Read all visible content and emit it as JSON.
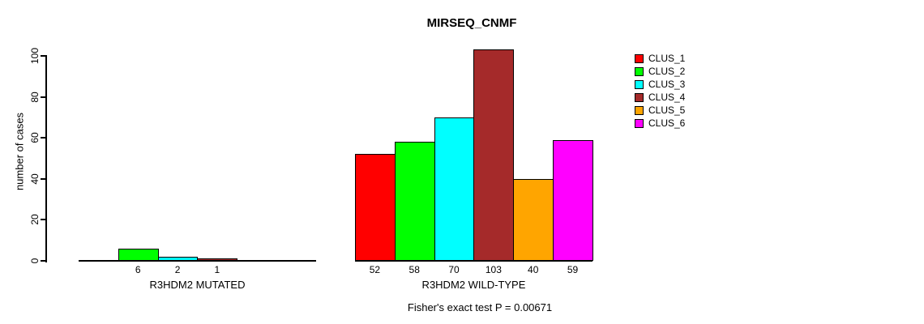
{
  "chart_data": {
    "type": "bar",
    "title": "MIRSEQ_CNMF",
    "ylabel": "number of cases",
    "ylim": [
      0,
      100
    ],
    "yticks": [
      0,
      20,
      40,
      60,
      80,
      100
    ],
    "grid": false,
    "legend_position": "right",
    "annotation": "Fisher's exact test P = 0.00671",
    "series": [
      {
        "name": "CLUS_1",
        "color": "#FF0000"
      },
      {
        "name": "CLUS_2",
        "color": "#00FF00"
      },
      {
        "name": "CLUS_3",
        "color": "#00FFFF"
      },
      {
        "name": "CLUS_4",
        "color": "#A52A2A"
      },
      {
        "name": "CLUS_5",
        "color": "#FFA500"
      },
      {
        "name": "CLUS_6",
        "color": "#FF00FF"
      }
    ],
    "groups": [
      {
        "label": "R3HDM2 MUTATED",
        "values": [
          0,
          6,
          2,
          1,
          0,
          0
        ]
      },
      {
        "label": "R3HDM2 WILD-TYPE",
        "values": [
          52,
          58,
          70,
          103,
          40,
          59
        ]
      }
    ]
  }
}
